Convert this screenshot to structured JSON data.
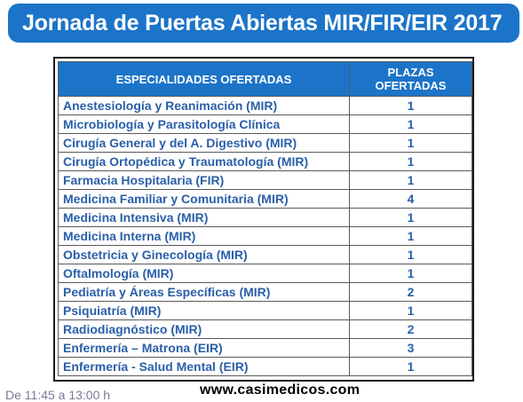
{
  "banner": {
    "title": "Jornada de Puertas Abiertas MIR/FIR/EIR 2017"
  },
  "table": {
    "headers": {
      "specialty": "ESPECIALIDADES OFERTADAS",
      "places_line1": "PLAZAS",
      "places_line2": "OFERTADAS"
    },
    "rows": [
      {
        "name": "Anestesiología y Reanimación (MIR)",
        "places": "1"
      },
      {
        "name": "Microbiología y Parasitología Clínica",
        "places": "1"
      },
      {
        "name": "Cirugía General y del A. Digestivo (MIR)",
        "places": "1"
      },
      {
        "name": "Cirugía Ortopédica y Traumatología (MIR)",
        "places": "1"
      },
      {
        "name": "Farmacia Hospitalaria (FIR)",
        "places": "1"
      },
      {
        "name": "Medicina Familiar y Comunitaria (MIR)",
        "places": "4"
      },
      {
        "name": "Medicina Intensiva (MIR)",
        "places": "1"
      },
      {
        "name": "Medicina Interna (MIR)",
        "places": "1"
      },
      {
        "name": "Obstetricia y Ginecología (MIR)",
        "places": "1"
      },
      {
        "name": "Oftalmología (MIR)",
        "places": "1"
      },
      {
        "name": "Pediatría y Áreas Específicas (MIR)",
        "places": "2"
      },
      {
        "name": "Psiquiatría (MIR)",
        "places": "1"
      },
      {
        "name": "Radiodiagnóstico (MIR)",
        "places": "2"
      },
      {
        "name": "Enfermería – Matrona (EIR)",
        "places": "3"
      },
      {
        "name": "Enfermería - Salud Mental (EIR)",
        "places": "1"
      }
    ]
  },
  "footer": {
    "partial_text": "De 11:45 a 13:00 h",
    "url": "www.casimedicos.com"
  },
  "colors": {
    "banner": "#1c74c8",
    "header": "#1c74c8",
    "cell_text": "#2a5fa8"
  }
}
